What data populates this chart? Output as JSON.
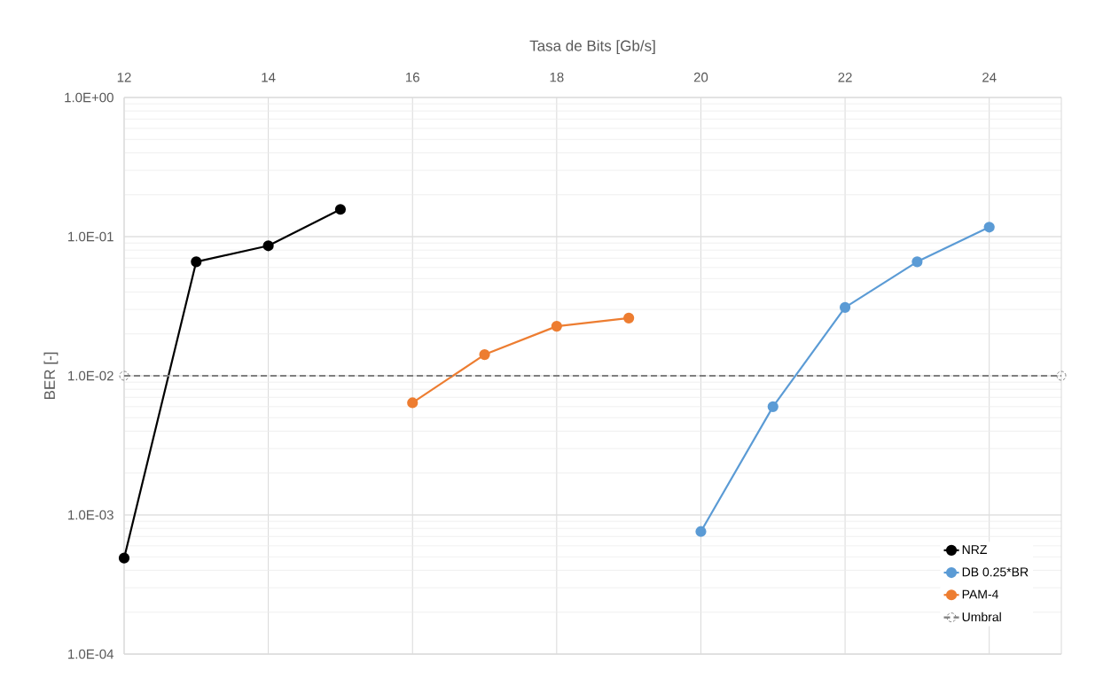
{
  "chart_data": {
    "type": "line",
    "xlabel": "Tasa de Bits [Gb/s]",
    "ylabel": "BER [-]",
    "log": "y",
    "grid": true,
    "legend": "bottom right",
    "marker": "circle",
    "xlim": [
      12,
      25
    ],
    "xticks": [
      12,
      14,
      16,
      18,
      20,
      22,
      24
    ],
    "ylim": [
      0.0001,
      1
    ],
    "yticks": [
      {
        "value": 0.0001,
        "label": "1.0E-04"
      },
      {
        "value": 0.001,
        "label": "1.0E-03"
      },
      {
        "value": 0.01,
        "label": "1.0E-02"
      },
      {
        "value": 0.1,
        "label": "1.0E-01"
      },
      {
        "value": 1,
        "label": "1.0E+00"
      }
    ],
    "series": [
      {
        "name": "NRZ",
        "color": "#000000",
        "x": [
          12,
          13,
          14,
          15
        ],
        "values": [
          0.00049,
          0.066,
          0.086,
          0.157
        ]
      },
      {
        "name": "DB 0.25*BR",
        "color": "#5b9bd5",
        "x": [
          20,
          21,
          22,
          23,
          24
        ],
        "values": [
          0.00076,
          0.006,
          0.031,
          0.066,
          0.117
        ]
      },
      {
        "name": "PAM-4",
        "color": "#ed7d31",
        "x": [
          16,
          17,
          18,
          19
        ],
        "values": [
          0.0064,
          0.0142,
          0.0227,
          0.026
        ]
      },
      {
        "name": "Umbral",
        "color": "#7f7f7f",
        "line_style": "dashed",
        "x": [
          12,
          25
        ],
        "values": [
          0.01,
          0.01
        ]
      }
    ]
  }
}
